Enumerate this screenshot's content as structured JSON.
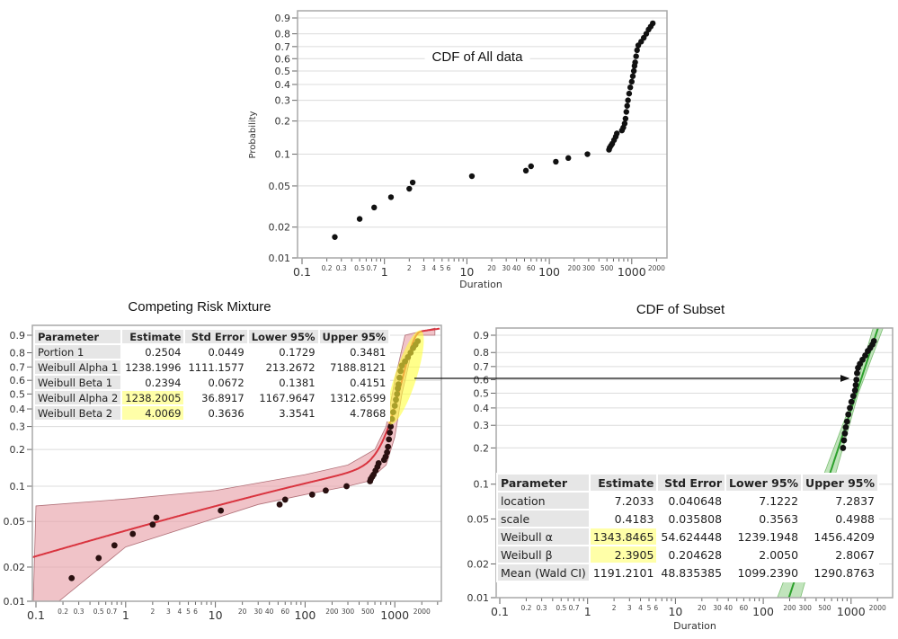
{
  "axes": {
    "y_ticks": [
      0.9,
      0.8,
      0.7,
      0.6,
      0.5,
      0.4,
      0.3,
      0.2,
      0.1,
      0.05,
      0.02,
      0.01
    ],
    "y_tick_labels": [
      "0.9",
      "0.8",
      "0.7",
      "0.6",
      "0.5",
      "0.4",
      "0.3",
      "0.2",
      "0.1",
      "0.05",
      "0.02",
      "0.01"
    ],
    "x_major_ticks": [
      0.1,
      1,
      10,
      100,
      1000
    ],
    "x_major_labels": [
      "0.1",
      "1",
      "10",
      "100",
      "1000"
    ],
    "x_minor_labeled": [
      0.2,
      0.3,
      0.5,
      0.7,
      2,
      3,
      4,
      5,
      6,
      20,
      30,
      40,
      60,
      200,
      300,
      500,
      2000
    ],
    "x_minor_labels": [
      "0.2",
      "0.3",
      "0.5",
      "0.7",
      "2",
      "3",
      "4",
      "5",
      "6",
      "20",
      "30",
      "40",
      "60",
      "200",
      "300",
      "500",
      "2000"
    ],
    "x_scale": "log",
    "y_scale": "weibull probability",
    "xlim": [
      0.1,
      2800
    ],
    "ylim": [
      0.01,
      0.9
    ]
  },
  "chart_data": [
    {
      "type": "scatter",
      "title": "CDF of All data",
      "xlabel": "Duration",
      "ylabel": "Probability",
      "grid": "horizontal",
      "point_color": "#111111",
      "points": {
        "x": [
          0.25,
          0.5,
          0.75,
          1.2,
          2,
          2.2,
          11.5,
          52,
          60,
          120,
          170,
          290,
          530,
          540,
          560,
          580,
          610,
          640,
          660,
          760,
          790,
          820,
          840,
          860,
          880,
          900,
          930,
          960,
          1000,
          1030,
          1060,
          1080,
          1100,
          1130,
          1160,
          1200,
          1300,
          1400,
          1500,
          1600,
          1700,
          1800
        ],
        "y": [
          0.016,
          0.024,
          0.031,
          0.039,
          0.047,
          0.054,
          0.062,
          0.07,
          0.077,
          0.085,
          0.092,
          0.1,
          0.11,
          0.115,
          0.12,
          0.125,
          0.135,
          0.145,
          0.155,
          0.165,
          0.175,
          0.19,
          0.21,
          0.24,
          0.27,
          0.3,
          0.34,
          0.38,
          0.42,
          0.46,
          0.5,
          0.54,
          0.57,
          0.62,
          0.67,
          0.71,
          0.74,
          0.77,
          0.8,
          0.83,
          0.85,
          0.87
        ]
      }
    },
    {
      "type": "scatter",
      "title": "Competing Risk Mixture",
      "grid": "horizontal",
      "point_color": "#2a1010",
      "fit_color": "#d9343f",
      "band_color": "#e8a3ab",
      "highlight_color": "#ffff3c",
      "fit": {
        "portion_1": 0.2504,
        "alpha_1": 1238.1996,
        "beta_1": 0.2394,
        "alpha_2": 1238.2005,
        "beta_2": 4.0069
      },
      "band_upper": {
        "x": [
          0.1,
          1,
          10,
          100,
          300,
          600,
          800,
          1000,
          1300,
          2800
        ],
        "y": [
          0.068,
          0.078,
          0.092,
          0.125,
          0.15,
          0.2,
          0.3,
          0.6,
          0.9,
          0.93
        ]
      },
      "band_lower": {
        "x": [
          2800,
          1700,
          1200,
          1000,
          800,
          500,
          300,
          100,
          30,
          1,
          0.18
        ],
        "y": [
          0.9,
          0.9,
          0.5,
          0.25,
          0.15,
          0.11,
          0.1,
          0.085,
          0.07,
          0.03,
          0.01
        ]
      },
      "points": {
        "x": [
          0.25,
          0.5,
          0.75,
          1.2,
          2,
          2.2,
          11.5,
          52,
          60,
          120,
          170,
          290,
          530,
          540,
          560,
          580,
          610,
          640,
          660,
          760,
          790,
          820,
          840,
          860,
          880,
          900,
          930,
          960,
          1000,
          1030,
          1060,
          1080,
          1100,
          1130,
          1160,
          1200,
          1300,
          1400,
          1500,
          1600,
          1700,
          1800
        ],
        "y": [
          0.016,
          0.024,
          0.031,
          0.039,
          0.047,
          0.054,
          0.062,
          0.07,
          0.077,
          0.085,
          0.092,
          0.1,
          0.11,
          0.115,
          0.12,
          0.125,
          0.135,
          0.145,
          0.155,
          0.165,
          0.175,
          0.19,
          0.21,
          0.24,
          0.27,
          0.3,
          0.34,
          0.38,
          0.42,
          0.46,
          0.5,
          0.54,
          0.57,
          0.62,
          0.67,
          0.71,
          0.74,
          0.77,
          0.8,
          0.83,
          0.85,
          0.87
        ]
      },
      "table": {
        "headers": [
          "Parameter",
          "Estimate",
          "Std Error",
          "Lower 95%",
          "Upper 95%"
        ],
        "rows": [
          [
            "Portion 1",
            "0.2504",
            "0.0449",
            "0.1729",
            "0.3481"
          ],
          [
            "Weibull Alpha 1",
            "1238.1996",
            "1111.1577",
            "213.2672",
            "7188.8121"
          ],
          [
            "Weibull Beta 1",
            "0.2394",
            "0.0672",
            "0.1381",
            "0.4151"
          ],
          [
            "Weibull Alpha 2",
            "1238.2005",
            "36.8917",
            "1167.9647",
            "1312.6599"
          ],
          [
            "Weibull Beta 2",
            "4.0069",
            "0.3636",
            "3.3541",
            "4.7868"
          ]
        ],
        "highlighted": [
          "Weibull Alpha 2:Estimate",
          "Weibull Beta 2:Estimate"
        ]
      }
    },
    {
      "type": "scatter",
      "title": "CDF of Subset",
      "xlabel": "Duration",
      "grid": "horizontal",
      "point_color": "#111111",
      "fit_color": "#2ca02c",
      "band_color": "#a6d9a0",
      "fit": {
        "weibull_alpha": 1343.8465,
        "weibull_beta": 2.3905
      },
      "points": {
        "x": [
          810,
          830,
          850,
          870,
          900,
          930,
          970,
          1010,
          1060,
          1110,
          1130,
          1150,
          1170,
          1200,
          1260,
          1350,
          1450,
          1550,
          1650,
          1750,
          1820
        ],
        "y": [
          0.2,
          0.23,
          0.26,
          0.29,
          0.32,
          0.36,
          0.4,
          0.44,
          0.48,
          0.52,
          0.56,
          0.6,
          0.65,
          0.69,
          0.72,
          0.75,
          0.78,
          0.81,
          0.83,
          0.85,
          0.87
        ]
      },
      "table": {
        "headers": [
          "Parameter",
          "Estimate",
          "Std Error",
          "Lower 95%",
          "Upper 95%"
        ],
        "rows": [
          [
            "location",
            "7.2033",
            "0.040648",
            "7.1222",
            "7.2837"
          ],
          [
            "scale",
            "0.4183",
            "0.035808",
            "0.3563",
            "0.4988"
          ],
          [
            "Weibull α",
            "1343.8465",
            "54.624448",
            "1239.1948",
            "1456.4209"
          ],
          [
            "Weibull β",
            "2.3905",
            "0.204628",
            "2.0050",
            "2.8067"
          ],
          [
            "Mean (Wald CI)",
            "1191.2101",
            "48.835385",
            "1099.2390",
            "1290.8763"
          ]
        ],
        "highlighted": [
          "Weibull α:Estimate",
          "Weibull β:Estimate"
        ]
      }
    }
  ]
}
